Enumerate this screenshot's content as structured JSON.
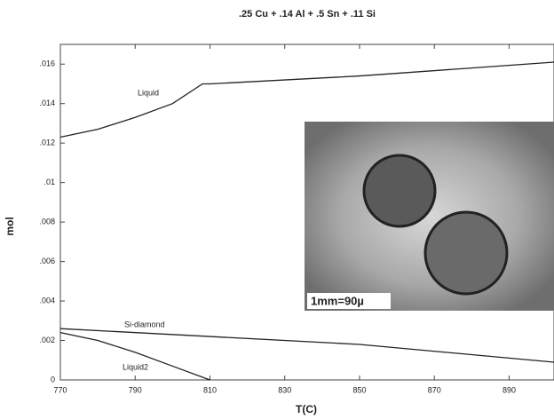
{
  "chart_data": {
    "type": "line",
    "title": ".25 Cu + .14 Al + .5 Sn + .11 Si",
    "x_label": "T(C)",
    "y_label": "mol",
    "xlim": [
      770,
      902
    ],
    "ylim": [
      0,
      0.017
    ],
    "xticks": [
      770,
      790,
      810,
      830,
      850,
      870,
      890
    ],
    "yticks": [
      {
        "value": 0,
        "label": "0"
      },
      {
        "value": 0.002,
        "label": ".002"
      },
      {
        "value": 0.004,
        "label": ".004"
      },
      {
        "value": 0.006,
        "label": ".006"
      },
      {
        "value": 0.008,
        "label": ".008"
      },
      {
        "value": 0.01,
        "label": ".01"
      },
      {
        "value": 0.012,
        "label": ".012"
      },
      {
        "value": 0.014,
        "label": ".014"
      },
      {
        "value": 0.016,
        "label": ".016"
      }
    ],
    "series": [
      {
        "name": "Liquid",
        "color": "#222222",
        "x": [
          770,
          780,
          790,
          800,
          808,
          810,
          850,
          902
        ],
        "values": [
          0.0123,
          0.0127,
          0.0133,
          0.014,
          0.015,
          0.015,
          0.0154,
          0.0161
        ]
      },
      {
        "name": "Si-diamond",
        "color": "#222222",
        "x": [
          770,
          810,
          850,
          902
        ],
        "values": [
          0.0026,
          0.0022,
          0.0018,
          0.0009
        ]
      },
      {
        "name": "Liquid2",
        "color": "#222222",
        "x": [
          770,
          780,
          790,
          800,
          810
        ],
        "values": [
          0.0024,
          0.002,
          0.0014,
          0.0007,
          0
        ]
      }
    ],
    "inset": {
      "caption": "1mm=90µ"
    }
  }
}
